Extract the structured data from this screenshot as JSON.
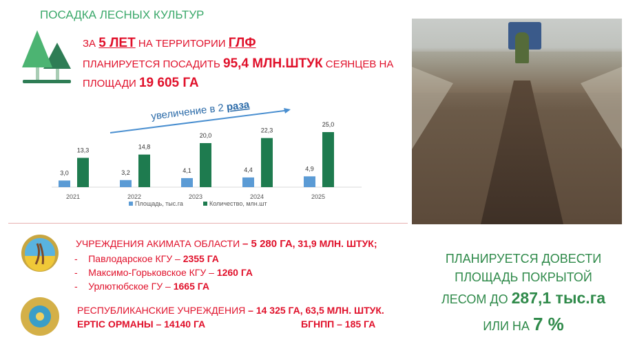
{
  "title": "ПОСАДКА ЛЕСНЫХ КУЛЬТУР",
  "headline": {
    "p1": "ЗА ",
    "years": "5 ЛЕТ",
    "p2": " НА ТЕРРИТОРИИ ",
    "glf": "ГЛФ",
    "p3": "ПЛАНИРУЕТСЯ ПОСАДИТЬ ",
    "qty": "95,4 МЛН.ШТУК",
    "p4": " СЕЯНЦЕВ НА",
    "p5": "ПЛОЩАДИ ",
    "area": "19 605 ГА"
  },
  "arrow_label": {
    "text": "увеличение в 2 ",
    "em": "раза"
  },
  "chart_data": {
    "type": "bar",
    "categories": [
      "2021",
      "2022",
      "2023",
      "2024",
      "2025"
    ],
    "series": [
      {
        "name": "Площадь, тыс.га",
        "color": "#5b9bd5",
        "values": [
          3.0,
          3.2,
          4.1,
          4.4,
          4.9
        ],
        "labels": [
          "3,0",
          "3,2",
          "4,1",
          "4,4",
          "4,9"
        ]
      },
      {
        "name": "Количество, млн.шт",
        "color": "#1e7b4f",
        "values": [
          13.3,
          14.8,
          20.0,
          22.3,
          25.0
        ],
        "labels": [
          "13,3",
          "14,8",
          "20,0",
          "22,3",
          "25,0"
        ]
      }
    ],
    "legend": "bottom",
    "grid": false
  },
  "akimat": {
    "head": "УЧРЕЖДЕНИЯ АКИМАТА ОБЛАСТИ ",
    "head_val": "– 5 280 ГА",
    "head_rest": ", 31,9 МЛН. ШТУК;",
    "items": [
      {
        "name": "Павлодарское КГУ – ",
        "val": "2355 ГА"
      },
      {
        "name": "Максимо-Горьковское КГУ – ",
        "val": "1260 ГА"
      },
      {
        "name": "Урлютюбское ГУ – ",
        "val": "1665 ГА"
      }
    ]
  },
  "republic": {
    "head": "РЕСПУБЛИКАНСКИЕ УЧРЕЖДЕНИЯ ",
    "head_val": "– 14 325 ГА, 63,5 МЛН. ШТУК.",
    "a": "ЕРТІС ОРМАНЫ – 14140 ГА",
    "b": "БГНПП – 185 ГА"
  },
  "goal": {
    "l1": "ПЛАНИРУЕТСЯ ДОВЕСТИ",
    "l2": "ПЛОЩАДЬ ПОКРЫТОЙ",
    "l3a": "ЛЕСОМ ДО ",
    "l3b": "287,1 тыс.га",
    "l4a": "ИЛИ НА ",
    "l4b": "7 %"
  }
}
